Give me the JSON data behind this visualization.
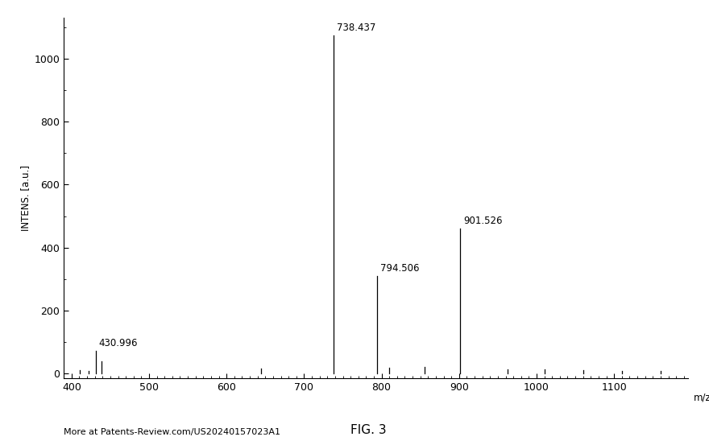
{
  "peaks": [
    {
      "mz": 411.0,
      "intensity": 10,
      "label": null
    },
    {
      "mz": 422.0,
      "intensity": 8,
      "label": null
    },
    {
      "mz": 430.996,
      "intensity": 72,
      "label": "430.996"
    },
    {
      "mz": 438.5,
      "intensity": 38,
      "label": null
    },
    {
      "mz": 644.0,
      "intensity": 16,
      "label": null
    },
    {
      "mz": 738.437,
      "intensity": 1075,
      "label": "738.437"
    },
    {
      "mz": 794.506,
      "intensity": 310,
      "label": "794.506"
    },
    {
      "mz": 810.0,
      "intensity": 18,
      "label": null
    },
    {
      "mz": 856.0,
      "intensity": 20,
      "label": null
    },
    {
      "mz": 901.526,
      "intensity": 460,
      "label": "901.526"
    },
    {
      "mz": 963.0,
      "intensity": 14,
      "label": null
    },
    {
      "mz": 1010.0,
      "intensity": 12,
      "label": null
    },
    {
      "mz": 1060.0,
      "intensity": 10,
      "label": null
    },
    {
      "mz": 1110.0,
      "intensity": 8,
      "label": null
    },
    {
      "mz": 1160.0,
      "intensity": 7,
      "label": null
    }
  ],
  "xlim": [
    390,
    1195
  ],
  "ylim": [
    -15,
    1130
  ],
  "xticks": [
    400,
    500,
    600,
    700,
    800,
    900,
    1000,
    1100
  ],
  "yticks": [
    0,
    200,
    400,
    600,
    800,
    1000
  ],
  "xlabel": "m/z",
  "ylabel": "INTENS. [a.u.]",
  "figure_label": "FIG. 3",
  "footer_text": "More at Patents-Review.com/US20240157023A1",
  "bg_color": "#ffffff",
  "line_color": "#000000",
  "label_fontsize": 8.5,
  "axis_label_fontsize": 8.5,
  "tick_fontsize": 9,
  "footer_fontsize": 8,
  "fig_label_fontsize": 11
}
